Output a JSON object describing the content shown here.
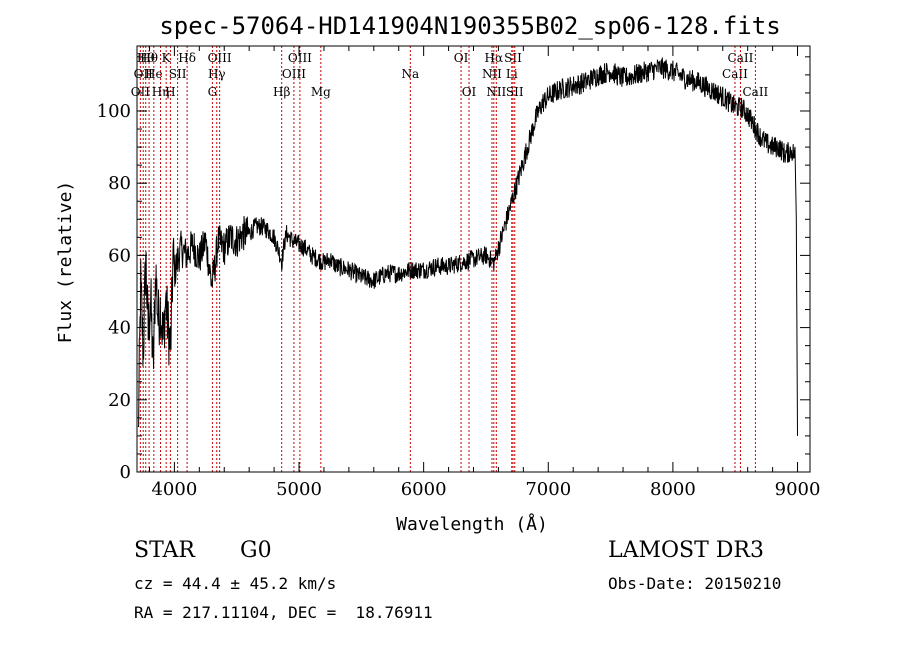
{
  "chart_data": {
    "type": "line",
    "title": "spec-57064-HD141904N190355B02_sp06-128.fits",
    "xlabel": "Wavelength (Å)",
    "ylabel": "Flux (relative)",
    "xlim": [
      3700,
      9100
    ],
    "ylim": [
      0,
      118
    ],
    "x_ticks": [
      4000,
      5000,
      6000,
      7000,
      8000,
      9000
    ],
    "y_ticks": [
      0,
      20,
      40,
      60,
      80,
      100
    ],
    "grid": false,
    "line_color": "#000000",
    "marker_color": "#cc0000",
    "series": [
      {
        "name": "spectrum",
        "x": [
          3710,
          3730,
          3750,
          3770,
          3790,
          3810,
          3830,
          3850,
          3870,
          3890,
          3910,
          3930,
          3950,
          3970,
          3990,
          4000,
          4050,
          4100,
          4150,
          4200,
          4250,
          4300,
          4330,
          4350,
          4400,
          4450,
          4500,
          4550,
          4600,
          4650,
          4700,
          4750,
          4800,
          4850,
          4861,
          4880,
          4900,
          4950,
          5000,
          5050,
          5100,
          5150,
          5200,
          5250,
          5300,
          5400,
          5500,
          5600,
          5700,
          5800,
          5900,
          6000,
          6100,
          6200,
          6300,
          6400,
          6500,
          6563,
          6600,
          6650,
          6700,
          6750,
          6800,
          6850,
          6900,
          6950,
          7000,
          7100,
          7200,
          7300,
          7400,
          7500,
          7600,
          7700,
          7800,
          7900,
          8000,
          8100,
          8200,
          8300,
          8400,
          8500,
          8550,
          8600,
          8650,
          8700,
          8750,
          8800,
          8850,
          8900,
          8950,
          8980,
          8990,
          9000
        ],
        "y": [
          10,
          52,
          32,
          60,
          38,
          48,
          28,
          56,
          42,
          46,
          36,
          48,
          40,
          34,
          60,
          55,
          62,
          60,
          63,
          59,
          64,
          52,
          58,
          64,
          62,
          65,
          64,
          66,
          66,
          68,
          68,
          67,
          65,
          60,
          58,
          63,
          66,
          64,
          63,
          62,
          60,
          59,
          58,
          59,
          57,
          56,
          54,
          53,
          55,
          55,
          56,
          56,
          57,
          57,
          58,
          59,
          60,
          58,
          62,
          68,
          74,
          80,
          86,
          92,
          98,
          102,
          104,
          106,
          107,
          108,
          110,
          111,
          109,
          110,
          111,
          112,
          111,
          109,
          108,
          106,
          104,
          101,
          101,
          99,
          96,
          93,
          91,
          90,
          90,
          88,
          89,
          88,
          70,
          10
        ]
      }
    ],
    "line_markers": [
      {
        "x": 3727,
        "label": "OII",
        "row": 3
      },
      {
        "x": 3750,
        "label": "OII",
        "row": 2
      },
      {
        "x": 3770,
        "label": "Hθ",
        "row": 1
      },
      {
        "x": 3797,
        "label": "Hθ",
        "row": 1
      },
      {
        "x": 3835,
        "label": "He",
        "row": 2
      },
      {
        "x": 3889,
        "label": "Hη",
        "row": 3
      },
      {
        "x": 3934,
        "label": "K",
        "row": 1
      },
      {
        "x": 3968,
        "label": "H",
        "row": 3
      },
      {
        "x": 4026,
        "label": "SII",
        "row": 2
      },
      {
        "x": 4102,
        "label": "Hδ",
        "row": 1
      },
      {
        "x": 4305,
        "label": "G",
        "row": 3
      },
      {
        "x": 4340,
        "label": "Hγ",
        "row": 2
      },
      {
        "x": 4363,
        "label": "OIII",
        "row": 1
      },
      {
        "x": 4861,
        "label": "Hβ",
        "row": 3
      },
      {
        "x": 4959,
        "label": "OIII",
        "row": 2
      },
      {
        "x": 5007,
        "label": "OIII",
        "row": 1
      },
      {
        "x": 5175,
        "label": "Mg",
        "row": 3
      },
      {
        "x": 5893,
        "label": "Na",
        "row": 2
      },
      {
        "x": 6300,
        "label": "OI",
        "row": 1
      },
      {
        "x": 6364,
        "label": "OI",
        "row": 3
      },
      {
        "x": 6548,
        "label": "NII",
        "row": 2
      },
      {
        "x": 6563,
        "label": "Hα",
        "row": 1
      },
      {
        "x": 6583,
        "label": "NII",
        "row": 3
      },
      {
        "x": 6707,
        "label": "Li",
        "row": 2
      },
      {
        "x": 6717,
        "label": "SII",
        "row": 1
      },
      {
        "x": 6731,
        "label": "SII",
        "row": 3
      },
      {
        "x": 8498,
        "label": "CaII",
        "row": 2
      },
      {
        "x": 8542,
        "label": "CaII",
        "row": 1
      },
      {
        "x": 8662,
        "label": "CaII",
        "row": 3
      }
    ]
  },
  "footer": {
    "object_class": "STAR",
    "subclass": "G0",
    "survey": "LAMOST DR3",
    "cz": "cz = 44.4 ± 45.2 km/s",
    "obs_date": "Obs-Date: 20150210",
    "coords": "RA = 217.11104, DEC =  18.76911"
  }
}
